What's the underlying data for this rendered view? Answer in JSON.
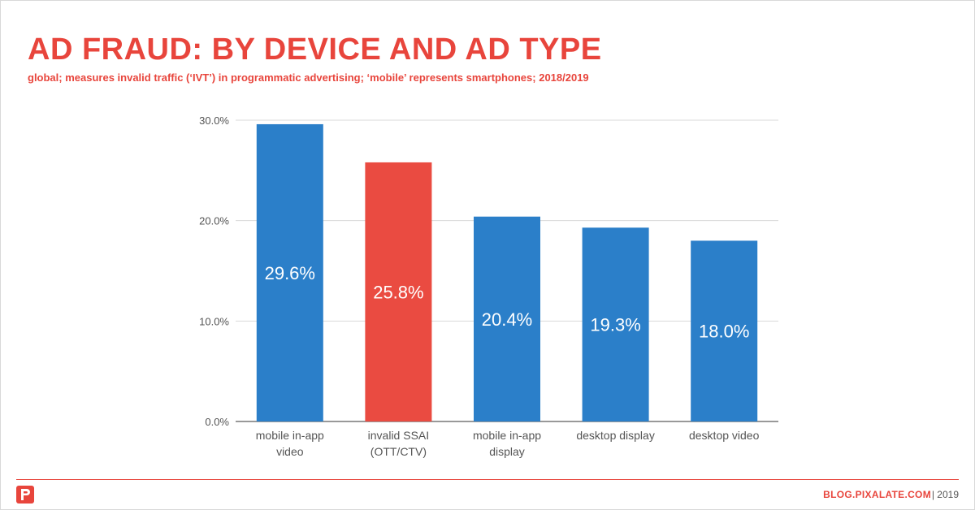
{
  "header": {
    "title": "AD FRAUD: BY DEVICE AND AD TYPE",
    "subtitle": "global; measures invalid traffic (‘IVT’) in programmatic advertising; ‘mobile’ represents smartphones; 2018/2019"
  },
  "footer": {
    "site": "BLOG.PIXALATE.COM",
    "year": "| 2019"
  },
  "colors": {
    "accent": "#e8453c",
    "bar_blue": "#2b7fc9",
    "bar_red": "#ea4b41",
    "grid": "#d9d9d9",
    "axis_text": "#555555"
  },
  "icons": {
    "logo": "pixalate-logo-icon"
  },
  "chart_data": {
    "type": "bar",
    "categories": [
      [
        "mobile in-app",
        "video"
      ],
      [
        "invalid SSAI",
        "(OTT/CTV)"
      ],
      [
        "mobile in-app",
        "display"
      ],
      [
        "desktop display"
      ],
      [
        "desktop video"
      ]
    ],
    "values": [
      29.6,
      25.8,
      20.4,
      19.3,
      18.0
    ],
    "data_labels": [
      "29.6%",
      "25.8%",
      "20.4%",
      "19.3%",
      "18.0%"
    ],
    "highlight_index": 1,
    "ylim": [
      0,
      30
    ],
    "yticks": [
      0,
      10,
      20,
      30
    ],
    "ytick_labels": [
      "0.0%",
      "10.0%",
      "20.0%",
      "30.0%"
    ],
    "grid": true,
    "xlabel": "",
    "ylabel": ""
  }
}
